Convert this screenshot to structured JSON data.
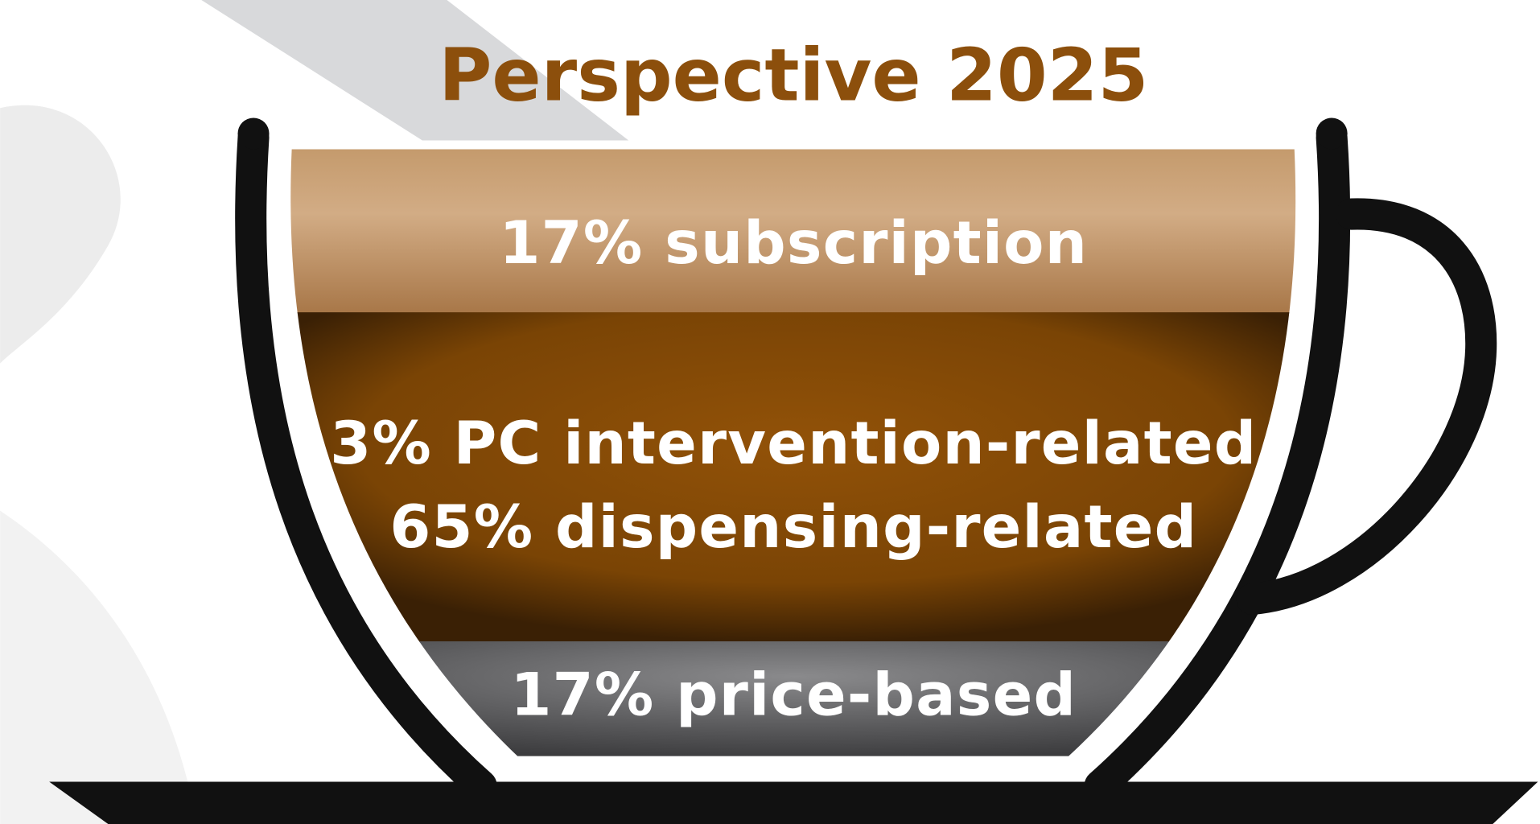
{
  "title": "Perspective 2025",
  "layers": [
    {
      "lines": [
        "17% subscription"
      ]
    },
    {
      "lines": [
        "3% PC intervention-related",
        "65% dispensing-related"
      ]
    },
    {
      "lines": [
        "17% price-based"
      ]
    }
  ]
}
